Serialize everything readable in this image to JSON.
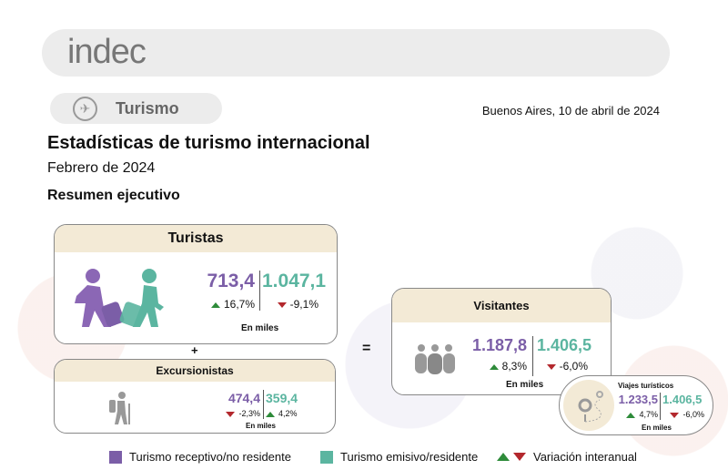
{
  "header": {
    "logo": "indec"
  },
  "topic": {
    "label": "Turismo",
    "icon": "tourism-icon"
  },
  "date": "Buenos Aires, 10 de abril de 2024",
  "title": "Estadísticas de turismo internacional",
  "subtitle": "Febrero de 2024",
  "section": "Resumen ejecutivo",
  "turistas": {
    "title": "Turistas",
    "receptivo": "713,4",
    "receptivo_var": "16,7%",
    "emisivo": "1.047,1",
    "emisivo_var": "-9,1%",
    "unit": "En miles"
  },
  "excursionistas": {
    "title": "Excursionistas",
    "receptivo": "474,4",
    "receptivo_var": "-2,3%",
    "emisivo": "359,4",
    "emisivo_var": "4,2%",
    "unit": "En miles"
  },
  "visitantes": {
    "title": "Visitantes",
    "receptivo": "1.187,8",
    "receptivo_var": "8,3%",
    "emisivo": "1.406,5",
    "emisivo_var": "-6,0%",
    "unit": "En miles"
  },
  "viajes": {
    "title": "Viajes turísticos",
    "receptivo": "1.233,5",
    "receptivo_var": "4,7%",
    "emisivo": "1.406,5",
    "emisivo_var": "-6,0%",
    "unit": "En miles"
  },
  "ops": {
    "plus": "+",
    "equals": "="
  },
  "legend": {
    "receptivo": "Turismo receptivo/no residente",
    "emisivo": "Turismo emisivo/residente",
    "variacion": "Variación interanual"
  },
  "colors": {
    "receptivo": "#7b5ea7",
    "emisivo": "#5bb5a0",
    "up": "#2e8b3a",
    "down": "#b3282d",
    "header": "#f3ead6"
  }
}
